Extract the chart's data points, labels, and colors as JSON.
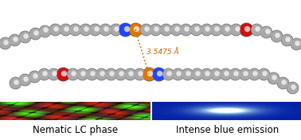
{
  "bg_color": "#ffffff",
  "annotation_text": "3.5475 Å",
  "annotation_color": "#cc6600",
  "label_left": "Nematic LC phase",
  "label_right": "Intense blue emission",
  "label_fontsize": 8.5,
  "label_color": "#000000",
  "fig_width": 3.78,
  "fig_height": 1.76,
  "dpi": 100,
  "emission_bg": "#0022cc",
  "molecule_bg": "#ffffff"
}
